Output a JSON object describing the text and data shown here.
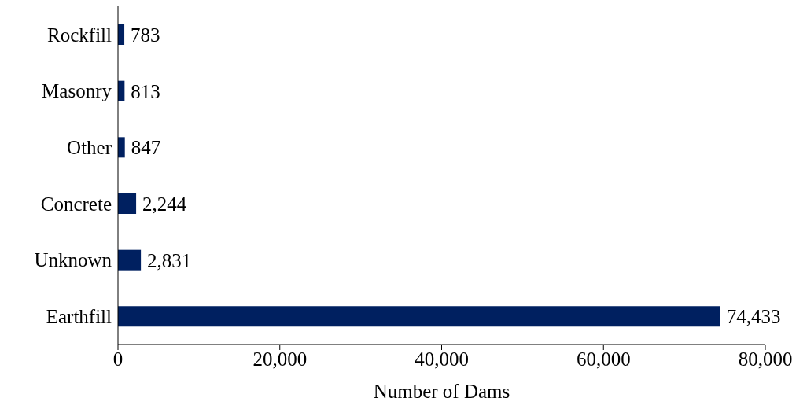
{
  "chart_data": {
    "type": "bar",
    "orientation": "horizontal",
    "xlabel": "Number of Dams",
    "categories": [
      "Rockfill",
      "Masonry",
      "Other",
      "Concrete",
      "Unknown",
      "Earthfill"
    ],
    "values": [
      783,
      813,
      847,
      2244,
      2831,
      74433
    ],
    "value_labels": [
      "783",
      "813",
      "847",
      "2,244",
      "2,831",
      "74,433"
    ],
    "color": "#002060",
    "xlim": [
      0,
      80000
    ],
    "xticks": [
      0,
      {
        "value": 20000,
        "label": "20,000"
      },
      {
        "value": 40000,
        "label": "40,000"
      },
      {
        "value": 60000,
        "label": "60,000"
      },
      {
        "value": 80000,
        "label": "80,000"
      }
    ],
    "grid": false,
    "legend": false
  }
}
